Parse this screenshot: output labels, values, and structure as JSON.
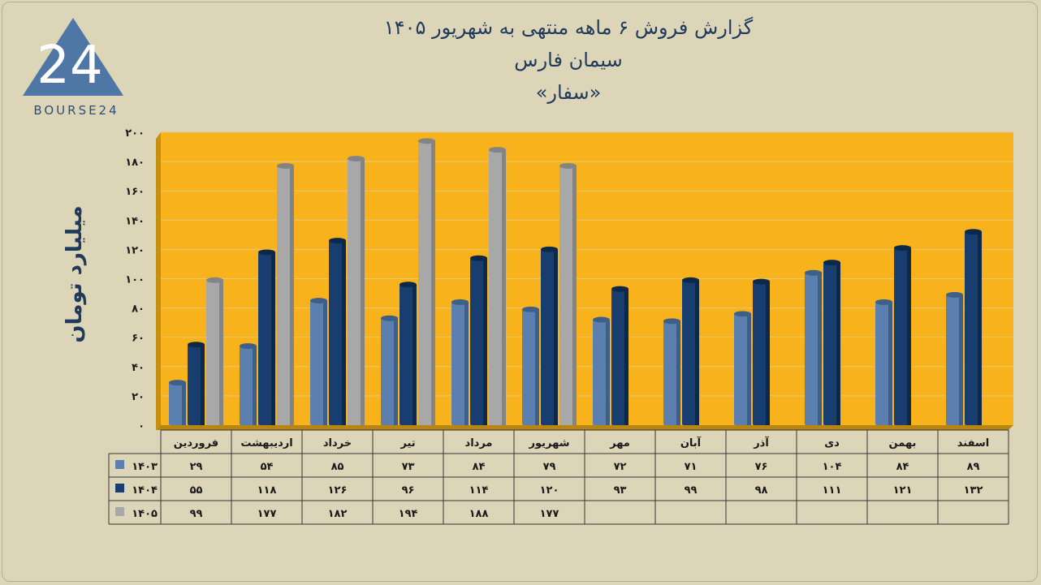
{
  "logo_text": "BOURSE24",
  "title_line1": "گزارش  فروش ۶ ماهه منتهی به شهریور ۱۴۰۵",
  "title_line2": "سیمان فارس",
  "title_line3": "«سفار»",
  "ylabel": "میلیارد تومان",
  "colors": {
    "background": "#ddd5b8",
    "plot": "#f7b21c",
    "s1403": "#5b7fae",
    "s1404": "#173e6e",
    "s1405": "#a8a8a8"
  },
  "chart_data": {
    "type": "bar",
    "title": "گزارش  فروش ۶ ماهه منتهی به شهریور ۱۴۰۵",
    "subtitle": "سیمان فارس «سفار»",
    "ylabel": "میلیارد تومان",
    "ylim": [
      0,
      200
    ],
    "yticks": [
      0,
      20,
      40,
      60,
      80,
      100,
      120,
      140,
      160,
      180,
      200
    ],
    "ytick_labels": [
      "۰",
      "۲۰",
      "۴۰",
      "۶۰",
      "۸۰",
      "۱۰۰",
      "۱۲۰",
      "۱۴۰",
      "۱۶۰",
      "۱۸۰",
      "۲۰۰"
    ],
    "grid": true,
    "legend": "data-table",
    "categories": [
      "فروردین",
      "اردیبهشت",
      "خرداد",
      "تیر",
      "مرداد",
      "شهریور",
      "مهر",
      "آبان",
      "آذر",
      "دی",
      "بهمن",
      "اسفند"
    ],
    "series": [
      {
        "name": "۱۴۰۳",
        "values": [
          29,
          54,
          85,
          73,
          84,
          79,
          72,
          71,
          76,
          104,
          84,
          89
        ],
        "labels": [
          "۲۹",
          "۵۴",
          "۸۵",
          "۷۳",
          "۸۴",
          "۷۹",
          "۷۲",
          "۷۱",
          "۷۶",
          "۱۰۴",
          "۸۴",
          "۸۹"
        ]
      },
      {
        "name": "۱۴۰۴",
        "values": [
          55,
          118,
          126,
          96,
          114,
          120,
          93,
          99,
          98,
          111,
          121,
          132
        ],
        "labels": [
          "۵۵",
          "۱۱۸",
          "۱۲۶",
          "۹۶",
          "۱۱۴",
          "۱۲۰",
          "۹۳",
          "۹۹",
          "۹۸",
          "۱۱۱",
          "۱۲۱",
          "۱۳۲"
        ]
      },
      {
        "name": "۱۴۰۵",
        "values": [
          99,
          177,
          182,
          194,
          188,
          177,
          null,
          null,
          null,
          null,
          null,
          null
        ],
        "labels": [
          "۹۹",
          "۱۷۷",
          "۱۸۲",
          "۱۹۴",
          "۱۸۸",
          "۱۷۷",
          "",
          "",
          "",
          "",
          "",
          ""
        ]
      }
    ]
  }
}
